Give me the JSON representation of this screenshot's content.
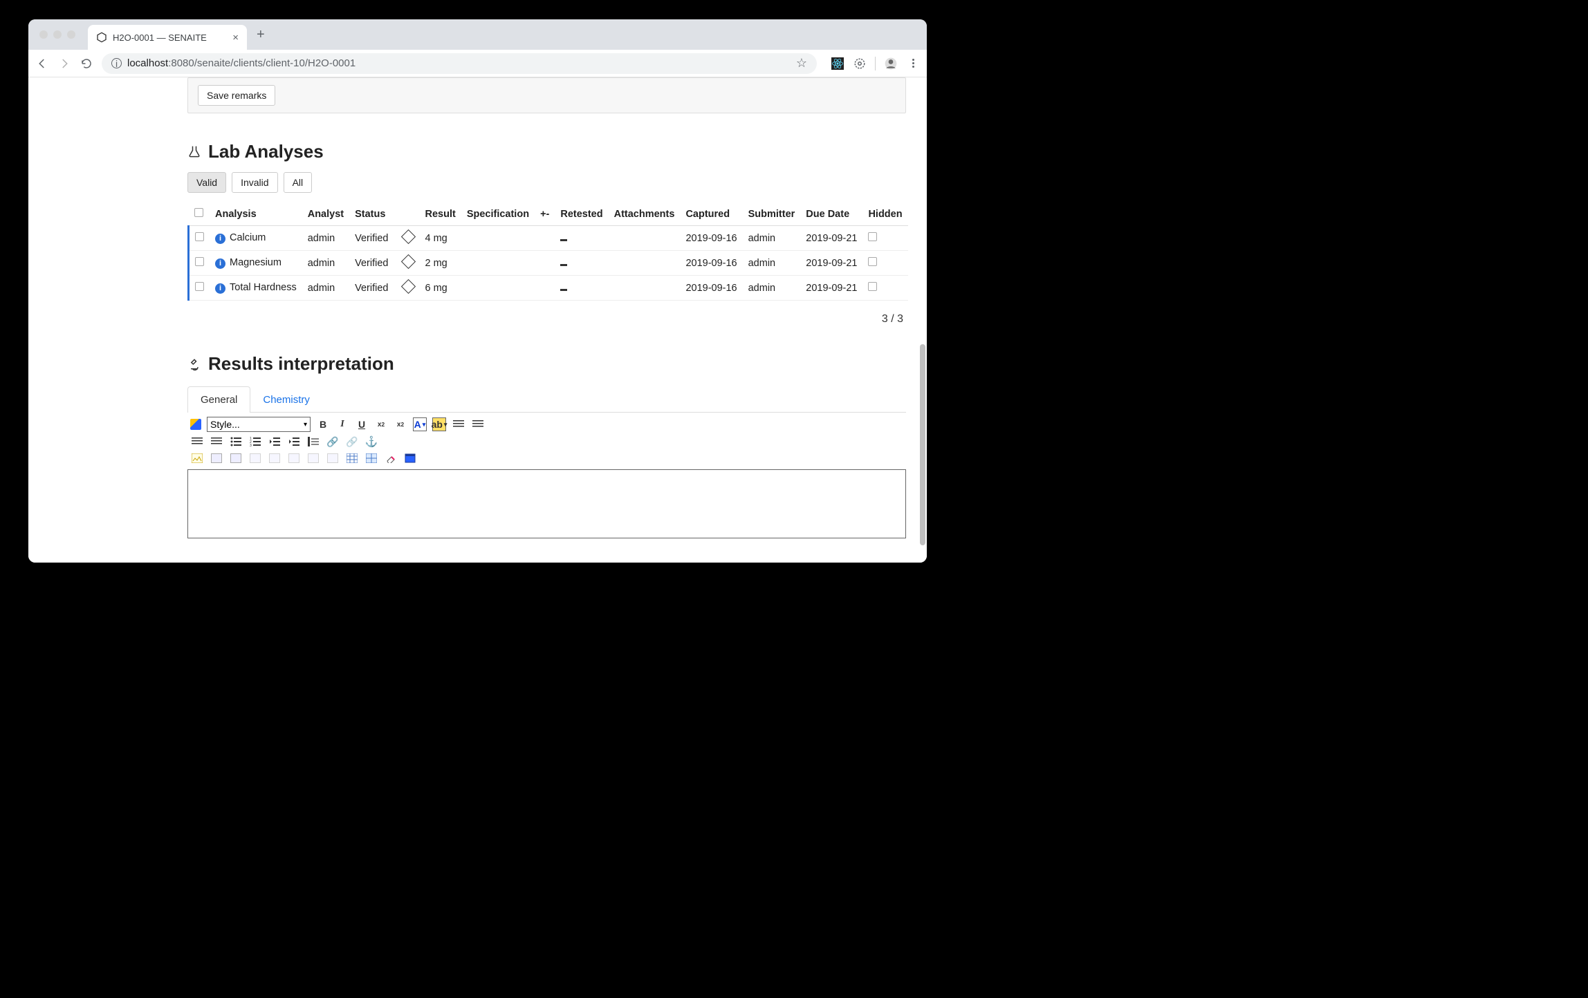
{
  "browser": {
    "tab_title": "H2O-0001 — SENAITE",
    "url_host": "localhost",
    "url_port_path": ":8080/senaite/clients/client-10/H2O-0001"
  },
  "remarks": {
    "save_button": "Save remarks"
  },
  "lab_analyses": {
    "title": "Lab Analyses",
    "filters": {
      "valid": "Valid",
      "invalid": "Invalid",
      "all": "All",
      "active": "valid"
    },
    "columns": {
      "analysis": "Analysis",
      "analyst": "Analyst",
      "status": "Status",
      "result": "Result",
      "specification": "Specification",
      "plusminus": "+-",
      "retested": "Retested",
      "attachments": "Attachments",
      "captured": "Captured",
      "submitter": "Submitter",
      "due_date": "Due Date",
      "hidden": "Hidden"
    },
    "rows": [
      {
        "analysis": "Calcium",
        "analyst": "admin",
        "status": "Verified",
        "result": "4 mg",
        "captured": "2019-09-16",
        "submitter": "admin",
        "due_date": "2019-09-21"
      },
      {
        "analysis": "Magnesium",
        "analyst": "admin",
        "status": "Verified",
        "result": "2 mg",
        "captured": "2019-09-16",
        "submitter": "admin",
        "due_date": "2019-09-21"
      },
      {
        "analysis": "Total Hardness",
        "analyst": "admin",
        "status": "Verified",
        "result": "6 mg",
        "captured": "2019-09-16",
        "submitter": "admin",
        "due_date": "2019-09-21"
      }
    ],
    "pager": "3 / 3"
  },
  "results_interpretation": {
    "title": "Results interpretation",
    "tabs": {
      "general": "General",
      "chemistry": "Chemistry"
    },
    "style_dropdown": "Style...",
    "bold": "B",
    "italic": "I",
    "underline": "U",
    "strike_sub": "x",
    "sup": "x",
    "fontcolor": "A",
    "highlight": "ab"
  },
  "colors": {
    "accent_blue": "#2a6fd6",
    "link_blue": "#1a73e8",
    "tabbar_bg": "#dee1e6",
    "border": "#dddddd"
  }
}
